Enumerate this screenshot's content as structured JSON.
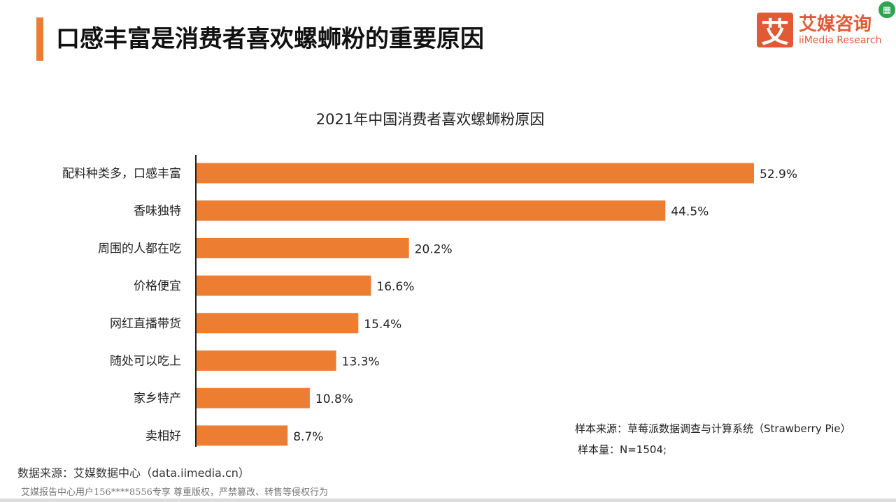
{
  "header": {
    "title": "口感丰富是消费者喜欢螺蛳粉的重要原因",
    "logo_mark": "艾",
    "logo_cn": "艾媒咨询",
    "logo_en": "iiMedia Research"
  },
  "chart_data": {
    "type": "bar",
    "orientation": "horizontal",
    "title": "2021年中国消费者喜欢螺蛳粉原因",
    "categories": [
      "配料种类多，口感丰富",
      "香味独特",
      "周围的人都在吃",
      "价格便宜",
      "网红直播带货",
      "随处可以吃上",
      "家乡特产",
      "卖相好"
    ],
    "values": [
      52.9,
      44.5,
      20.2,
      16.6,
      15.4,
      13.3,
      10.8,
      8.7
    ],
    "labels": [
      "52.9%",
      "44.5%",
      "20.2%",
      "16.6%",
      "15.4%",
      "13.3%",
      "10.8%",
      "8.7%"
    ],
    "unit": "%",
    "xlim": [
      0,
      60
    ],
    "color": "#ed7d31",
    "grid": false
  },
  "notes": {
    "sample_source": "样本来源：草莓派数据调查与计算系统（Strawberry Pie）",
    "sample_size": "样本量：N=1504;"
  },
  "footer": {
    "source": "数据来源：艾媒数据中心（data.iimedia.cn）",
    "watermark": "艾媒报告中心用户156****8556专享 尊重版权，严禁篡改、转售等侵权行为"
  }
}
